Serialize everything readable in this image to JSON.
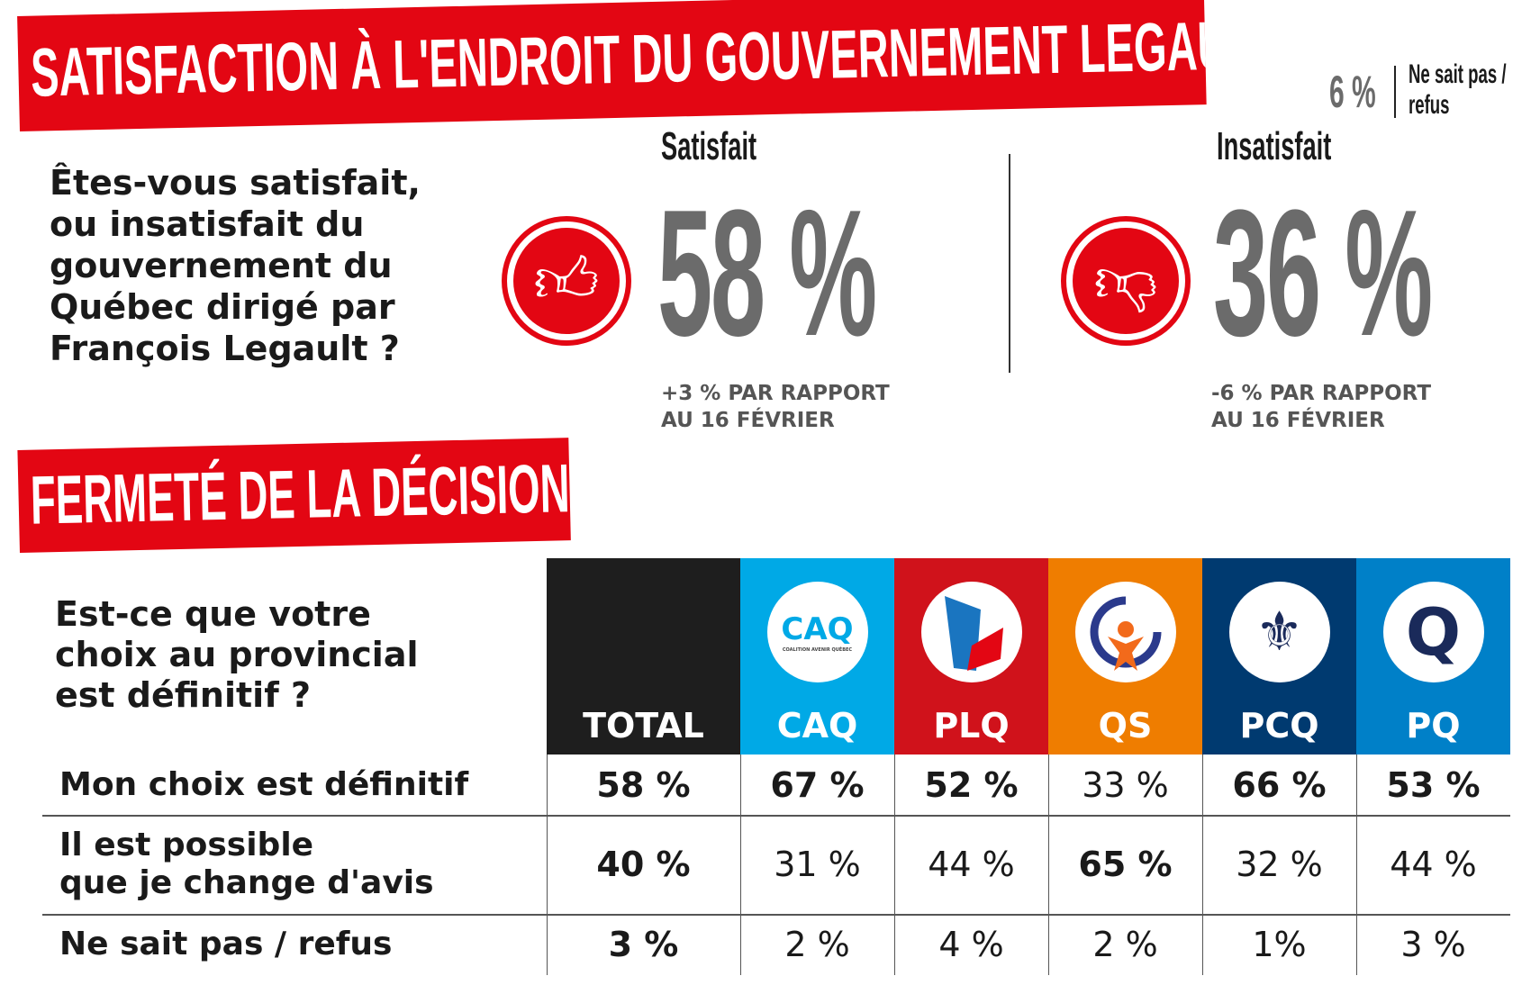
{
  "title": "SATISFACTION À L'ENDROIT DU GOUVERNEMENT LEGAULT",
  "dont_know": {
    "value": "6 %",
    "label_line1": "Ne sait pas /",
    "label_line2": "refus"
  },
  "question1": [
    "Êtes-vous satisfait,",
    "ou insatisfait du",
    "gouvernement du",
    "Québec dirigé par",
    "François Legault ?"
  ],
  "satisfied": {
    "label": "Satisfait",
    "value": "58 %",
    "change1": "+3 % PAR RAPPORT",
    "change2": "AU 16 FÉVRIER",
    "icon": "thumbs-up-icon"
  },
  "unsatisfied": {
    "label": "Insatisfait",
    "value": "36 %",
    "change1": "-6  % PAR RAPPORT",
    "change2": "AU 16 FÉVRIER",
    "icon": "thumbs-down-icon"
  },
  "section2_title": "FERMETÉ DE LA DÉCISION",
  "question2": [
    "Est-ce que votre",
    "choix au provincial",
    "est définitif ?"
  ],
  "columns": [
    {
      "label": "TOTAL",
      "color": "#1e1e1e"
    },
    {
      "label": "CAQ",
      "color": "#00a9e6",
      "logo": "CAQ",
      "logo_sub": "COALITION AVENIR QUÉBEC"
    },
    {
      "label": "PLQ",
      "color": "#d0121b"
    },
    {
      "label": "QS",
      "color": "#ef7d00"
    },
    {
      "label": "PCQ",
      "color": "#003a70"
    },
    {
      "label": "PQ",
      "color": "#0080c8"
    }
  ],
  "rows": [
    {
      "label": [
        "Mon choix est définitif"
      ],
      "values": [
        "58 %",
        "67 %",
        "52 %",
        "33 %",
        "66 %",
        "53 %"
      ],
      "bold": [
        true,
        true,
        true,
        false,
        true,
        true
      ]
    },
    {
      "label": [
        "Il est possible",
        "que je change d'avis"
      ],
      "values": [
        "40 %",
        "31 %",
        "44 %",
        "65 %",
        "32 %",
        "44 %"
      ],
      "bold": [
        true,
        false,
        false,
        true,
        false,
        false
      ]
    },
    {
      "label": [
        "Ne sait pas / refus"
      ],
      "values": [
        "3 %",
        "2 %",
        "4 %",
        "2 %",
        "1%",
        "3 %"
      ],
      "bold": [
        true,
        false,
        false,
        false,
        false,
        false
      ]
    }
  ],
  "accent": "#e30613"
}
